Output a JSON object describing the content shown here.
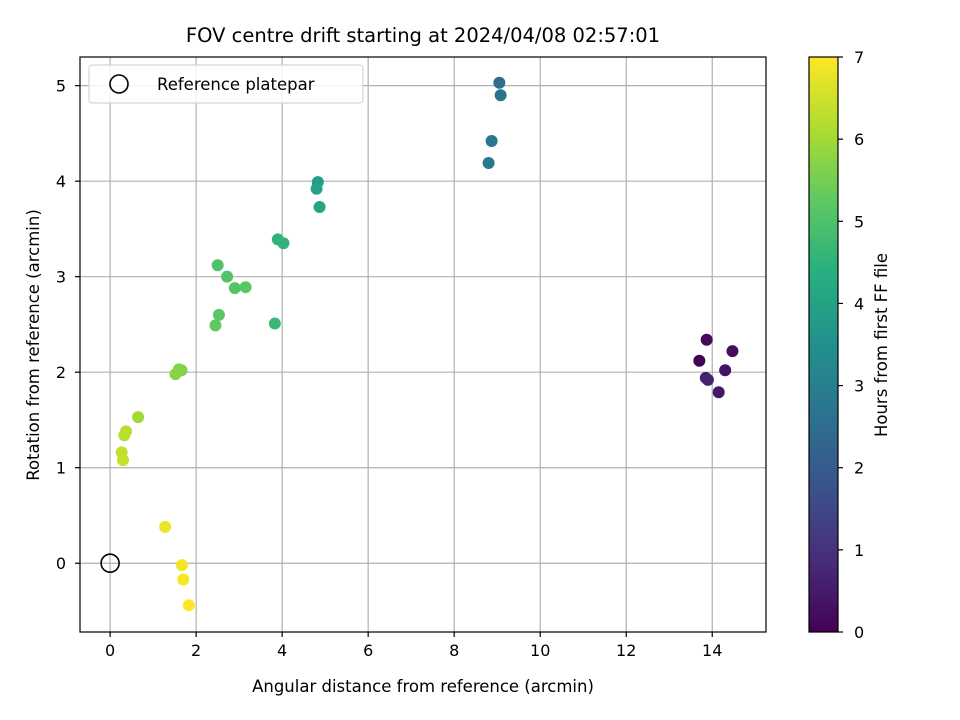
{
  "chart_data": {
    "type": "scatter",
    "title": "FOV centre drift starting at 2024/04/08 02:57:01",
    "xlabel": "Angular distance from reference (arcmin)",
    "ylabel": "Rotation from reference (arcmin)",
    "xlim": [
      -0.7,
      15.25
    ],
    "ylim": [
      -0.72,
      5.3
    ],
    "xticks": [
      0,
      2,
      4,
      6,
      8,
      10,
      12,
      14
    ],
    "yticks": [
      0,
      1,
      2,
      3,
      4,
      5
    ],
    "grid": true,
    "colorbar": {
      "label": "Hours from first FF file",
      "range": [
        0,
        7
      ],
      "ticks": [
        0,
        1,
        2,
        3,
        4,
        5,
        6,
        7
      ],
      "colormap": "viridis"
    },
    "legend": {
      "placement": "top-left",
      "entries": [
        {
          "label": "Reference platepar",
          "marker": "open-circle"
        }
      ]
    },
    "reference_point": {
      "x": 0,
      "y": 0
    },
    "points": [
      {
        "x": 13.7,
        "y": 2.12,
        "hours": 0.0
      },
      {
        "x": 13.87,
        "y": 2.34,
        "hours": 0.15
      },
      {
        "x": 14.47,
        "y": 2.22,
        "hours": 0.25
      },
      {
        "x": 14.3,
        "y": 2.02,
        "hours": 0.35
      },
      {
        "x": 14.15,
        "y": 1.79,
        "hours": 0.45
      },
      {
        "x": 13.85,
        "y": 1.94,
        "hours": 0.55
      },
      {
        "x": 13.9,
        "y": 1.92,
        "hours": 0.7
      },
      {
        "x": 9.05,
        "y": 5.03,
        "hours": 2.5
      },
      {
        "x": 9.08,
        "y": 4.9,
        "hours": 2.6
      },
      {
        "x": 8.87,
        "y": 4.42,
        "hours": 2.7
      },
      {
        "x": 8.8,
        "y": 4.19,
        "hours": 2.8
      },
      {
        "x": 4.83,
        "y": 3.99,
        "hours": 3.9
      },
      {
        "x": 4.8,
        "y": 3.92,
        "hours": 4.0
      },
      {
        "x": 4.87,
        "y": 3.73,
        "hours": 4.1
      },
      {
        "x": 3.9,
        "y": 3.39,
        "hours": 4.5
      },
      {
        "x": 4.03,
        "y": 3.35,
        "hours": 4.55
      },
      {
        "x": 3.83,
        "y": 2.51,
        "hours": 4.7
      },
      {
        "x": 2.5,
        "y": 3.12,
        "hours": 5.0
      },
      {
        "x": 2.72,
        "y": 3.0,
        "hours": 5.05
      },
      {
        "x": 2.9,
        "y": 2.88,
        "hours": 5.1
      },
      {
        "x": 3.15,
        "y": 2.89,
        "hours": 5.15
      },
      {
        "x": 2.53,
        "y": 2.6,
        "hours": 5.2
      },
      {
        "x": 2.45,
        "y": 2.49,
        "hours": 5.25
      },
      {
        "x": 1.6,
        "y": 2.03,
        "hours": 5.6
      },
      {
        "x": 1.66,
        "y": 2.02,
        "hours": 5.65
      },
      {
        "x": 1.52,
        "y": 1.98,
        "hours": 5.7
      },
      {
        "x": 0.65,
        "y": 1.53,
        "hours": 6.0
      },
      {
        "x": 0.37,
        "y": 1.38,
        "hours": 6.2
      },
      {
        "x": 0.33,
        "y": 1.34,
        "hours": 6.25
      },
      {
        "x": 0.27,
        "y": 1.16,
        "hours": 6.35
      },
      {
        "x": 0.3,
        "y": 1.08,
        "hours": 6.4
      },
      {
        "x": 1.28,
        "y": 0.38,
        "hours": 6.8
      },
      {
        "x": 1.67,
        "y": -0.02,
        "hours": 6.9
      },
      {
        "x": 1.7,
        "y": -0.17,
        "hours": 6.95
      },
      {
        "x": 1.83,
        "y": -0.44,
        "hours": 7.0
      }
    ]
  }
}
